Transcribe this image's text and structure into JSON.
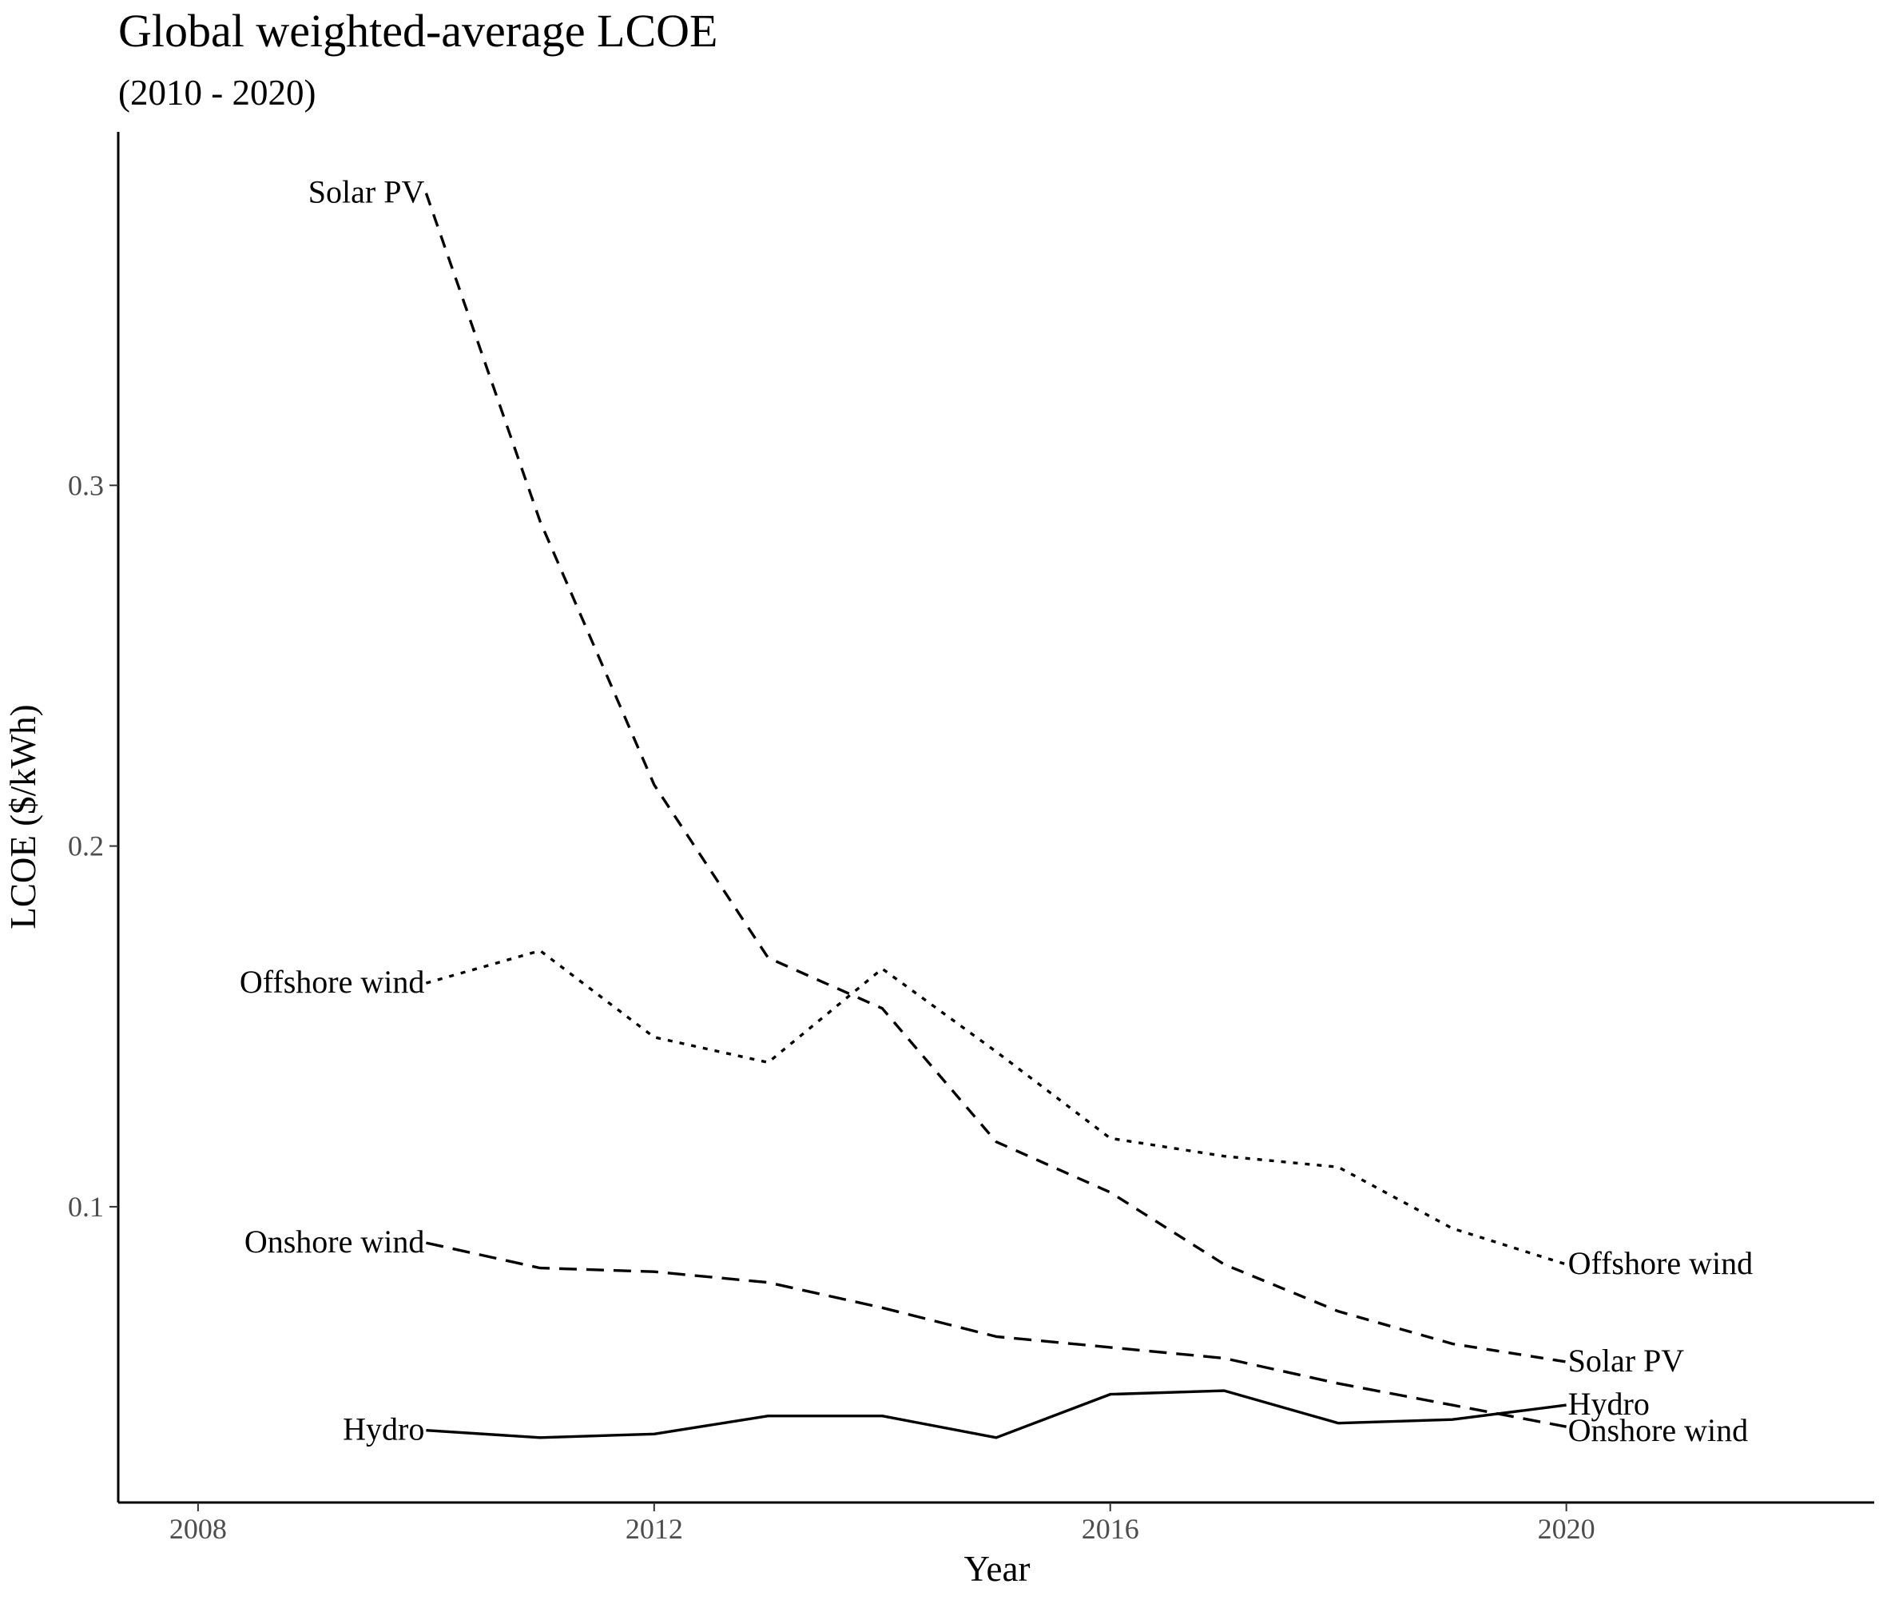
{
  "chart_data": {
    "type": "line",
    "title": "Global weighted-average LCOE",
    "subtitle": "(2010 - 2020)",
    "xlabel": "Year",
    "ylabel": "LCOE ($/kWh)",
    "xlim": [
      2007.3,
      2022.7
    ],
    "ylim": [
      0.018,
      0.398
    ],
    "x_ticks": [
      2008,
      2012,
      2016,
      2020
    ],
    "y_ticks": [
      0.1,
      0.2,
      0.3
    ],
    "y_tick_labels": [
      "0.1",
      "0.2",
      "0.3"
    ],
    "grid": false,
    "legend": "none (direct labels at line ends)",
    "x": [
      2010,
      2011,
      2012,
      2013,
      2014,
      2015,
      2016,
      2017,
      2018,
      2019,
      2020
    ],
    "series": [
      {
        "name": "Solar PV",
        "linestyle": "dashed",
        "color": "#000000",
        "values": [
          0.381,
          0.29,
          0.217,
          0.169,
          0.155,
          0.118,
          0.104,
          0.084,
          0.071,
          0.062,
          0.057
        ]
      },
      {
        "name": "Offshore wind",
        "linestyle": "dotted",
        "color": "#000000",
        "values": [
          0.162,
          0.171,
          0.147,
          0.14,
          0.166,
          0.143,
          0.119,
          0.114,
          0.111,
          0.094,
          0.084
        ]
      },
      {
        "name": "Onshore wind",
        "linestyle": "longdash",
        "color": "#000000",
        "values": [
          0.09,
          0.083,
          0.082,
          0.079,
          0.072,
          0.064,
          0.061,
          0.058,
          0.051,
          0.045,
          0.039
        ]
      },
      {
        "name": "Hydro",
        "linestyle": "solid",
        "color": "#000000",
        "values": [
          0.038,
          0.036,
          0.037,
          0.042,
          0.042,
          0.036,
          0.048,
          0.049,
          0.04,
          0.041,
          0.045
        ]
      }
    ]
  }
}
